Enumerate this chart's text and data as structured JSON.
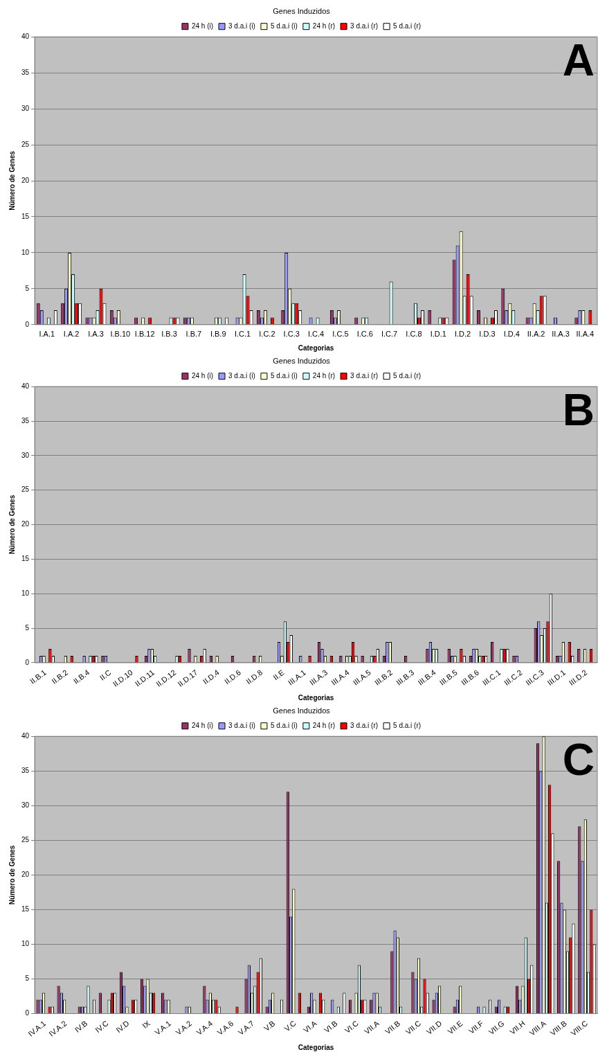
{
  "chart_data": [
    {
      "type": "bar",
      "title": "Genes Induzidos",
      "xlabel": "Categorias",
      "ylabel": "Número de Genes",
      "annotations": [
        "A"
      ],
      "legend": "top",
      "grid": "y",
      "ylim": [
        0,
        40
      ],
      "yticks": [
        0,
        5,
        10,
        15,
        20,
        25,
        30,
        35,
        40
      ],
      "categories": [
        "I.A.1",
        "I.A.2",
        "I.A.3",
        "I.B.10",
        "I.B.12",
        "I.B.3",
        "I.B.7",
        "I.B.9",
        "I.C.1",
        "I.C.2",
        "I.C.3",
        "I.C.4",
        "I.C.5",
        "I.C.6",
        "I.C.7",
        "I.C.8",
        "I.D.1",
        "I.D.2",
        "I.D.3",
        "I.D.4",
        "II.A.2",
        "II.A.3",
        "II.A.4"
      ],
      "series": [
        {
          "name": "24 h (i)",
          "color": "#993366",
          "values": [
            3,
            3,
            1,
            2,
            1,
            0,
            1,
            0,
            0,
            2,
            2,
            0,
            2,
            1,
            0,
            0,
            2,
            9,
            2,
            5,
            1,
            0,
            1
          ]
        },
        {
          "name": "3 d.a.i (i)",
          "color": "#9999ff",
          "values": [
            2,
            5,
            1,
            1,
            0,
            0,
            1,
            0,
            1,
            1,
            10,
            1,
            1,
            0,
            0,
            0,
            0,
            11,
            0,
            2,
            1,
            1,
            2
          ]
        },
        {
          "name": "5 d.a.i (i)",
          "color": "#ffffcc",
          "values": [
            0,
            10,
            1,
            2,
            1,
            0,
            1,
            1,
            1,
            2,
            5,
            0,
            2,
            1,
            0,
            0,
            0,
            13,
            1,
            3,
            3,
            0,
            2
          ]
        },
        {
          "name": "24 h (r)",
          "color": "#ccffff",
          "values": [
            1,
            7,
            2,
            0,
            0,
            1,
            0,
            1,
            7,
            0,
            3,
            1,
            0,
            1,
            6,
            3,
            1,
            4,
            0,
            2,
            2,
            0,
            0
          ]
        },
        {
          "name": "3 d.a.i (r)",
          "color": "#ff0000",
          "values": [
            0,
            3,
            5,
            0,
            1,
            1,
            0,
            0,
            4,
            1,
            3,
            0,
            0,
            0,
            0,
            1,
            1,
            7,
            1,
            0,
            4,
            0,
            2
          ]
        },
        {
          "name": "5 d.a.i (r)",
          "color": "#ffffff",
          "values": [
            2,
            3,
            3,
            0,
            0,
            1,
            0,
            1,
            2,
            0,
            2,
            0,
            0,
            0,
            0,
            2,
            1,
            4,
            2,
            0,
            4,
            0,
            0
          ]
        }
      ]
    },
    {
      "type": "bar",
      "title": "Genes Induzidos",
      "xlabel": "Categorias",
      "ylabel": "Número de Genes",
      "annotations": [
        "B"
      ],
      "legend": "top",
      "grid": "y",
      "ylim": [
        0,
        40
      ],
      "yticks": [
        0,
        5,
        10,
        15,
        20,
        25,
        30,
        35,
        40
      ],
      "categories": [
        "II.B.1",
        "II.B.2",
        "II.B.4",
        "II.C",
        "II.D.10",
        "II.D.11",
        "II.D.12",
        "II.D.17",
        "II.D.4",
        "II.D.6",
        "II.D.8",
        "II.E",
        "III.A.1",
        "III.A.3",
        "III.A.4",
        "III.A.5",
        "III.B.2",
        "III.B.3",
        "III.B.4",
        "III.B.5",
        "III.B.6",
        "III.C.1",
        "III.C.2",
        "III.C.3",
        "III.D.1",
        "III.D.2"
      ],
      "series": [
        {
          "name": "24 h (i)",
          "color": "#993366",
          "values": [
            0,
            0,
            0,
            1,
            0,
            1,
            0,
            2,
            1,
            1,
            1,
            0,
            0,
            3,
            1,
            1,
            1,
            1,
            2,
            2,
            1,
            3,
            1,
            5,
            1,
            2
          ]
        },
        {
          "name": "3 d.a.i (i)",
          "color": "#9999ff",
          "values": [
            1,
            0,
            1,
            1,
            0,
            2,
            0,
            0,
            0,
            0,
            0,
            3,
            1,
            2,
            0,
            0,
            3,
            0,
            3,
            1,
            2,
            0,
            1,
            6,
            1,
            0
          ]
        },
        {
          "name": "5 d.a.i (i)",
          "color": "#ffffcc",
          "values": [
            1,
            1,
            0,
            0,
            0,
            2,
            0,
            1,
            1,
            0,
            1,
            1,
            0,
            1,
            1,
            0,
            3,
            0,
            2,
            1,
            2,
            0,
            0,
            4,
            3,
            2
          ]
        },
        {
          "name": "24 h (r)",
          "color": "#ccffff",
          "values": [
            0,
            0,
            1,
            0,
            0,
            1,
            1,
            0,
            0,
            0,
            0,
            6,
            0,
            0,
            1,
            1,
            0,
            0,
            2,
            0,
            1,
            2,
            0,
            5,
            0,
            0
          ]
        },
        {
          "name": "3 d.a.i (r)",
          "color": "#ff0000",
          "values": [
            2,
            1,
            1,
            0,
            1,
            0,
            1,
            1,
            0,
            0,
            0,
            3,
            1,
            1,
            3,
            1,
            0,
            0,
            0,
            2,
            1,
            2,
            0,
            6,
            3,
            2
          ]
        },
        {
          "name": "5 d.a.i (r)",
          "color": "#ffffff",
          "values": [
            1,
            0,
            1,
            0,
            0,
            0,
            0,
            2,
            0,
            0,
            0,
            4,
            0,
            0,
            1,
            2,
            0,
            0,
            0,
            1,
            1,
            2,
            0,
            10,
            1,
            0
          ]
        }
      ]
    },
    {
      "type": "bar",
      "title": "Genes Induzidos",
      "xlabel": "Categorias",
      "ylabel": "Número de Genes",
      "annotations": [
        "C"
      ],
      "legend": "top",
      "grid": "y",
      "ylim": [
        0,
        40
      ],
      "yticks": [
        0,
        5,
        10,
        15,
        20,
        25,
        30,
        35,
        40
      ],
      "categories": [
        "IV.A.1",
        "IV.A.2",
        "IV.B",
        "IV.C",
        "IV.D",
        "IX",
        "V.A.1",
        "V.A.2",
        "V.A.4",
        "V.A.6",
        "V.A.7",
        "V.B",
        "V.C",
        "VI.A",
        "VI.B",
        "VI.C",
        "VII.A",
        "VII.B",
        "VII.C",
        "VII.D",
        "VII.E",
        "VII.F",
        "VII.G",
        "VII.H",
        "VIII.A",
        "VIII.B",
        "VIII.C"
      ],
      "series": [
        {
          "name": "24 h (i)",
          "color": "#993366",
          "values": [
            2,
            4,
            1,
            3,
            6,
            5,
            3,
            0,
            4,
            0,
            5,
            1,
            32,
            1,
            0,
            2,
            2,
            9,
            6,
            2,
            1,
            0,
            1,
            4,
            39,
            22,
            27
          ]
        },
        {
          "name": "3 d.a.i (i)",
          "color": "#9999ff",
          "values": [
            2,
            3,
            1,
            0,
            4,
            4,
            2,
            1,
            2,
            0,
            7,
            2,
            14,
            3,
            2,
            0,
            3,
            12,
            5,
            3,
            2,
            1,
            2,
            2,
            35,
            16,
            22
          ]
        },
        {
          "name": "5 d.a.i (i)",
          "color": "#ffffcc",
          "values": [
            3,
            2,
            1,
            0,
            1,
            5,
            2,
            1,
            3,
            0,
            3,
            3,
            18,
            2,
            0,
            3,
            3,
            11,
            8,
            4,
            4,
            0,
            0,
            4,
            40,
            15,
            28
          ]
        },
        {
          "name": "24 h (r)",
          "color": "#ccffff",
          "values": [
            0,
            0,
            4,
            2,
            0,
            3,
            0,
            0,
            2,
            0,
            4,
            0,
            0,
            0,
            1,
            7,
            1,
            1,
            1,
            0,
            0,
            1,
            1,
            11,
            16,
            9,
            6
          ]
        },
        {
          "name": "3 d.a.i (r)",
          "color": "#ff0000",
          "values": [
            1,
            0,
            0,
            3,
            2,
            3,
            0,
            0,
            2,
            1,
            6,
            0,
            3,
            3,
            0,
            2,
            0,
            0,
            5,
            0,
            0,
            0,
            1,
            5,
            33,
            11,
            15
          ]
        },
        {
          "name": "5 d.a.i (r)",
          "color": "#ffffff",
          "values": [
            1,
            0,
            2,
            3,
            2,
            0,
            0,
            0,
            1,
            0,
            8,
            2,
            0,
            2,
            3,
            2,
            0,
            0,
            3,
            0,
            0,
            2,
            0,
            7,
            26,
            13,
            10
          ]
        }
      ]
    }
  ]
}
